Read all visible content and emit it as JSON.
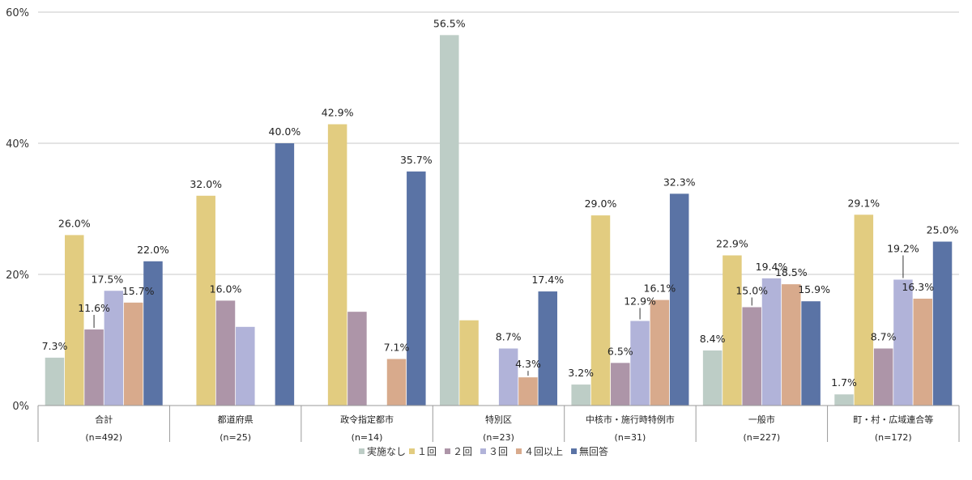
{
  "chart_data": {
    "type": "bar",
    "categories": [
      "合計",
      "都道府県",
      "政令指定都市",
      "特別区",
      "中核市・施行時特例市",
      "一般市",
      "町・村・広域連合等"
    ],
    "category_counts": [
      "(n=492)",
      "(n=25)",
      "(n=14)",
      "(n=23)",
      "(n=31)",
      "(n=227)",
      "(n=172)"
    ],
    "series": [
      {
        "name": "実施なし",
        "color": "#bdcdc6",
        "values": [
          7.3,
          0,
          0,
          56.5,
          3.2,
          8.4,
          1.7
        ],
        "labels": [
          "7.3%",
          "",
          "",
          "56.5%",
          "3.2%",
          "8.4%",
          "1.7%"
        ]
      },
      {
        "name": "1回",
        "color": "#e2cc80",
        "values": [
          26.0,
          32.0,
          42.9,
          13.0,
          29.0,
          22.9,
          29.1
        ],
        "labels": [
          "26.0%",
          "32.0%",
          "42.9%",
          "",
          "29.0%",
          "22.9%",
          "29.1%"
        ]
      },
      {
        "name": "2回",
        "color": "#ad95a8",
        "values": [
          11.6,
          16.0,
          14.3,
          0,
          6.5,
          15.0,
          8.7
        ],
        "labels": [
          "11.6%",
          "16.0%",
          "",
          "",
          "6.5%",
          "15.0%",
          "8.7%"
        ]
      },
      {
        "name": "3回",
        "color": "#b1b3d9",
        "values": [
          17.5,
          12.0,
          0,
          8.7,
          12.9,
          19.4,
          19.2
        ],
        "labels": [
          "17.5%",
          "",
          "",
          "8.7%",
          "12.9%",
          "19.4%",
          "19.2%"
        ]
      },
      {
        "name": "4回以上",
        "color": "#d8aa8c",
        "values": [
          15.7,
          0,
          7.1,
          4.3,
          16.1,
          18.5,
          16.3
        ],
        "labels": [
          "15.7%",
          "",
          "7.1%",
          "4.3%",
          "16.1%",
          "18.5%",
          "16.3%"
        ]
      },
      {
        "name": "無回答",
        "color": "#5a73a5",
        "values": [
          22.0,
          40.0,
          35.7,
          17.4,
          32.3,
          15.9,
          25.0
        ],
        "labels": [
          "22.0%",
          "40.0%",
          "35.7%",
          "17.4%",
          "32.3%",
          "15.9%",
          "25.0%"
        ]
      }
    ],
    "legend_labels": [
      "実施なし",
      "１回",
      "２回",
      "３回",
      "４回以上",
      "無回答"
    ],
    "yticks": [
      "0%",
      "20%",
      "40%",
      "60%"
    ],
    "ylim": [
      0,
      60
    ],
    "grid": true,
    "legend_position": "bottom"
  }
}
